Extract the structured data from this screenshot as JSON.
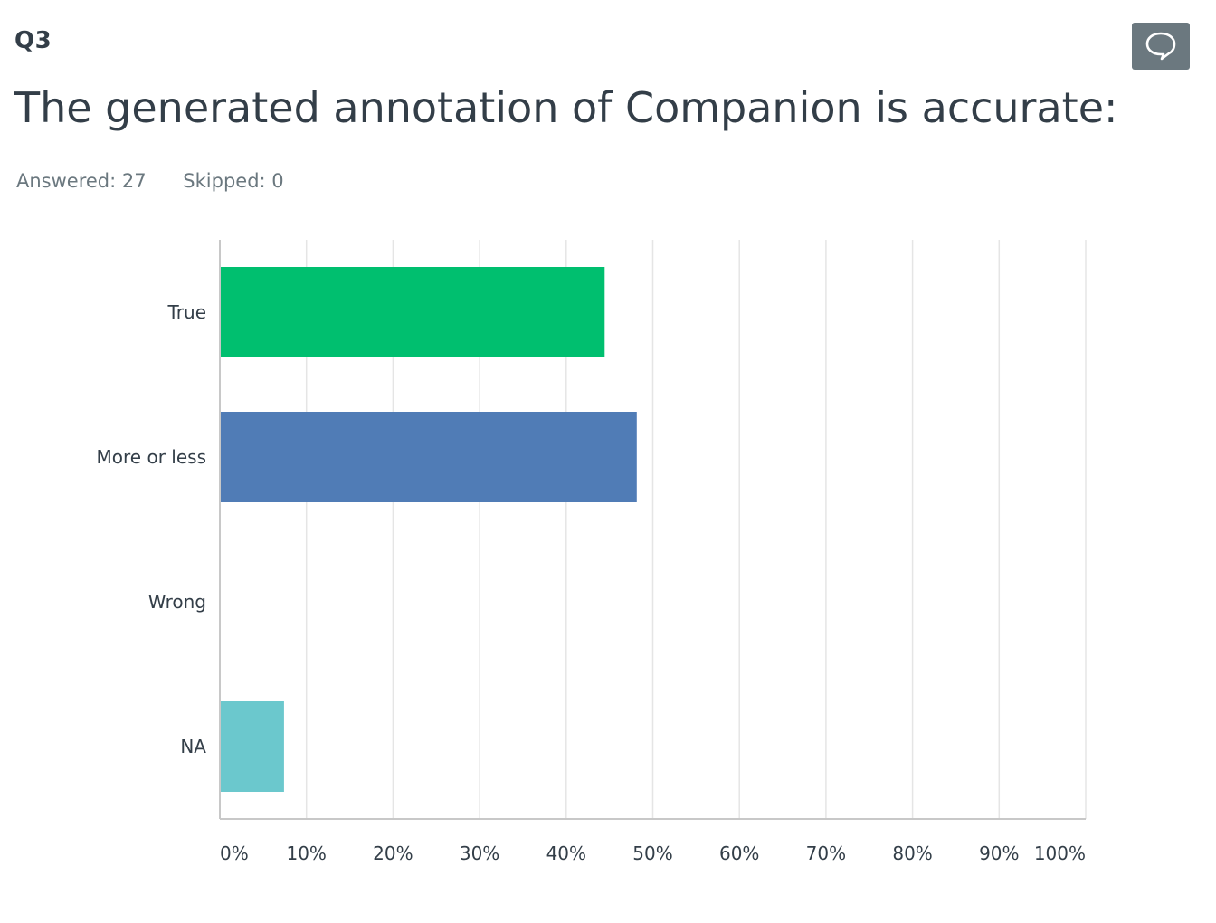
{
  "question": {
    "number": "Q3",
    "title": "The generated annotation of Companion is accurate:",
    "answered": "Answered: 27",
    "skipped": "Skipped: 0"
  },
  "comment_button": {
    "icon": "speech-bubble-icon"
  },
  "chart_data": {
    "type": "bar",
    "orientation": "horizontal",
    "categories": [
      "True",
      "More or less",
      "Wrong",
      "NA"
    ],
    "values": [
      44.44,
      48.15,
      0,
      7.41
    ],
    "colors": [
      "#00bf6f",
      "#507cb6",
      "#f9be00",
      "#6bc8cd"
    ],
    "xlim": [
      0,
      100
    ],
    "ticks": [
      "0%",
      "10%",
      "20%",
      "30%",
      "40%",
      "50%",
      "60%",
      "70%",
      "80%",
      "90%",
      "100%"
    ],
    "grid": true,
    "gridline_color": "#e5e5e5",
    "axis_color": "#c8c8c8"
  }
}
